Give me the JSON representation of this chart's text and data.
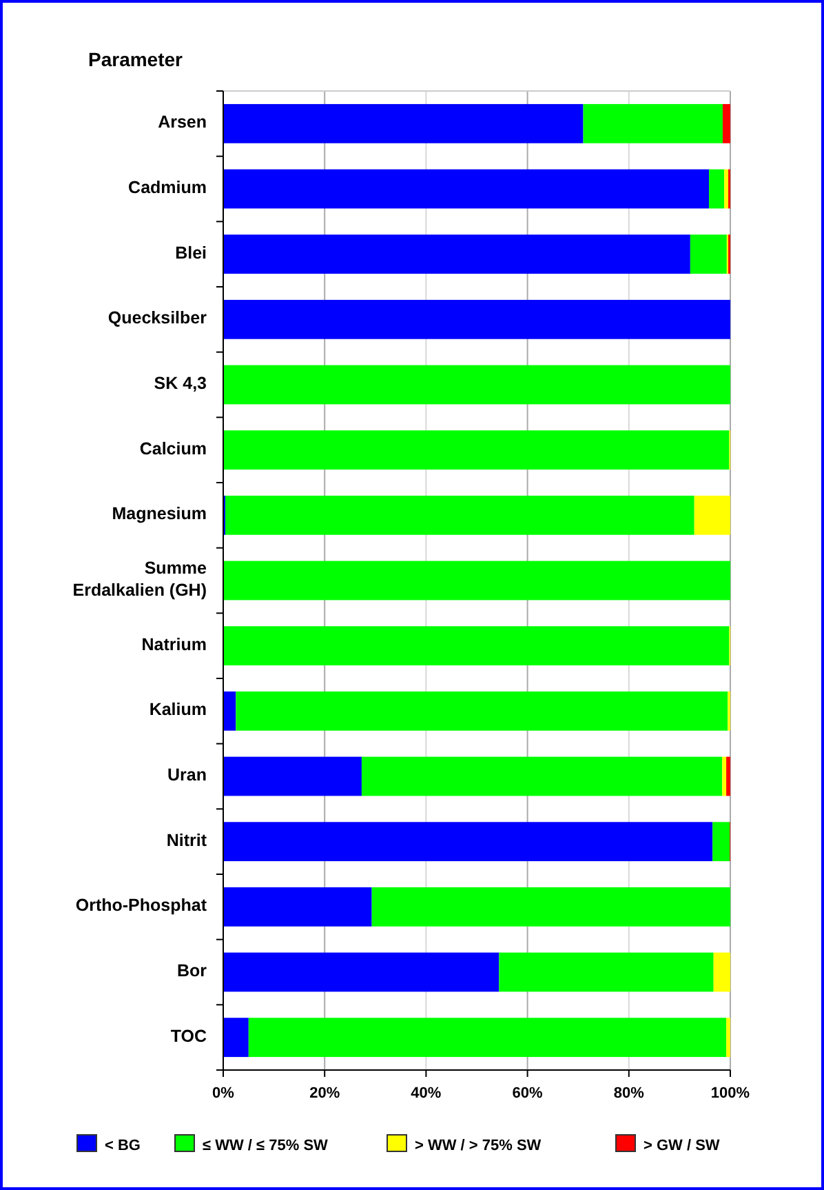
{
  "chart_data": {
    "type": "bar",
    "orientation": "horizontal",
    "stacked": true,
    "ylabel": "Parameter",
    "categories": [
      "Arsen",
      "Cadmium",
      "Blei",
      "Quecksilber",
      "SK 4,3",
      "Calcium",
      "Magnesium",
      "Summe Erdalkalien (GH)",
      "Natrium",
      "Kalium",
      "Uran",
      "Nitrit",
      "Ortho-Phosphat",
      "Bor",
      "TOC"
    ],
    "series": [
      {
        "name": "< BG",
        "color": "#0000ff",
        "values": [
          71,
          95.8,
          92.1,
          100,
          0,
          0,
          0.4,
          0,
          0,
          2.5,
          27.3,
          96.5,
          29.3,
          54.4,
          5
        ]
      },
      {
        "name": "≤ WW / ≤ 75% SW",
        "color": "#00ff00",
        "values": [
          27.5,
          3,
          7.2,
          0,
          100,
          99.8,
          92.5,
          100,
          99.8,
          97,
          71.1,
          3.4,
          70.7,
          42.3,
          94.2
        ]
      },
      {
        "name": "> WW / > 75% SW",
        "color": "#ffff00",
        "values": [
          0,
          0.8,
          0.3,
          0,
          0,
          0.2,
          7.1,
          0,
          0.2,
          0.5,
          0.8,
          0,
          0,
          3.3,
          0.8
        ]
      },
      {
        "name": "> GW / SW",
        "color": "#ff0000",
        "values": [
          1.5,
          0.4,
          0.4,
          0,
          0,
          0,
          0,
          0,
          0,
          0,
          0.8,
          0.1,
          0,
          0,
          0
        ]
      }
    ],
    "xlim": [
      0,
      100
    ],
    "xticks": [
      {
        "value": 0,
        "label": "0%"
      },
      {
        "value": 20,
        "label": "20%"
      },
      {
        "value": 40,
        "label": "40%"
      },
      {
        "value": 60,
        "label": "60%"
      },
      {
        "value": 80,
        "label": "80%"
      },
      {
        "value": 100,
        "label": "100%"
      }
    ],
    "grid": "x",
    "legend": "bottom"
  }
}
